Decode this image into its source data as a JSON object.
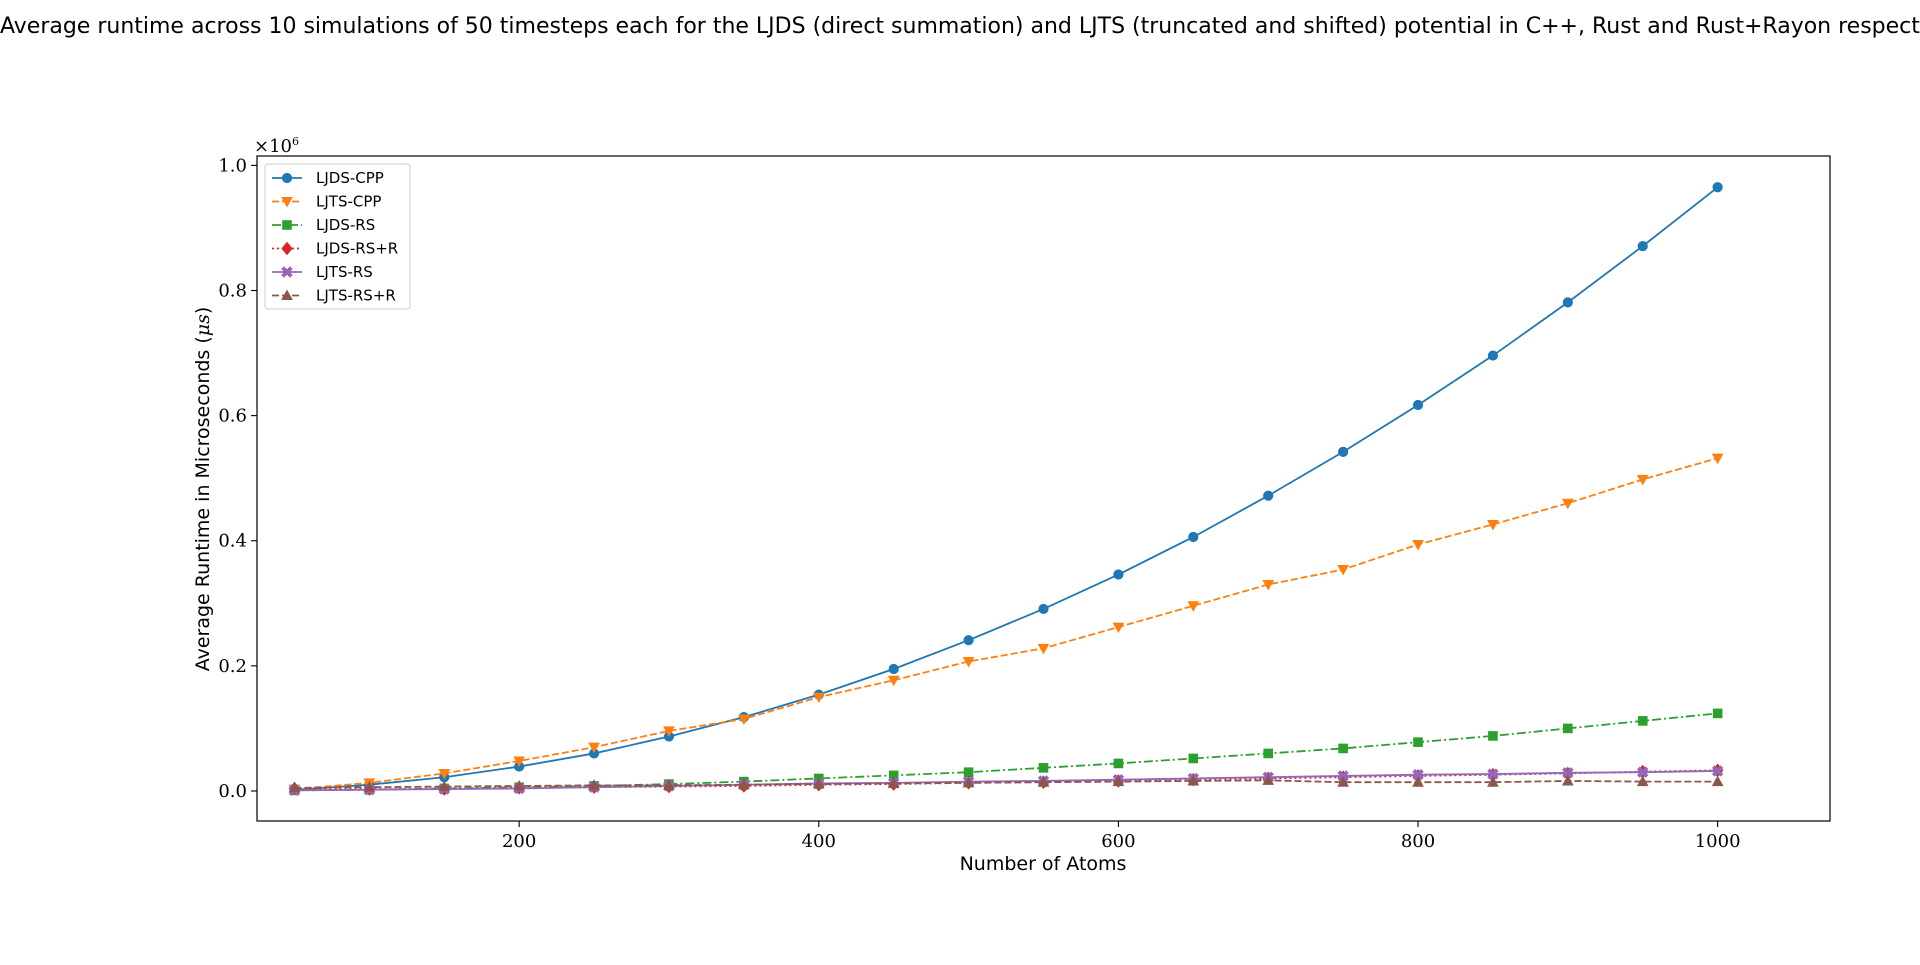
{
  "chart_data": {
    "type": "line",
    "title": "Average runtime across 10 simulations of 50 timesteps each for the LJDS (direct summation) and LJTS (truncated and shifted) potential in C++, Rust and Rust+Rayon respectively",
    "xlabel": "Number of Atoms",
    "ylabel_prefix": "Average Runtime in Microseconds (",
    "ylabel_unit": "μs",
    "ylabel_suffix": ")",
    "y_scale_base": "×10",
    "y_scale_exp": "6",
    "xlim": [
      25,
      1075
    ],
    "ylim": [
      -0.048,
      1.015
    ],
    "xticks": [
      200,
      400,
      600,
      800,
      1000
    ],
    "xtick_labels": [
      "200",
      "400",
      "600",
      "800",
      "1000"
    ],
    "yticks": [
      0.0,
      0.2,
      0.4,
      0.6,
      0.8,
      1.0
    ],
    "ytick_labels": [
      "0.0",
      "0.2",
      "0.4",
      "0.6",
      "0.8",
      "1.0"
    ],
    "legend_position": "upper-left",
    "x": [
      50,
      100,
      150,
      200,
      250,
      300,
      350,
      400,
      450,
      500,
      550,
      600,
      650,
      700,
      750,
      800,
      850,
      900,
      950,
      1000
    ],
    "series": [
      {
        "name": "LJDS-CPP",
        "color": "#1f77b4",
        "marker": "circle",
        "dash": "solid",
        "values": [
          0.002,
          0.01,
          0.022,
          0.039,
          0.06,
          0.087,
          0.118,
          0.154,
          0.195,
          0.241,
          0.291,
          0.346,
          0.406,
          0.472,
          0.542,
          0.617,
          0.696,
          0.781,
          0.871,
          0.965
        ]
      },
      {
        "name": "LJTS-CPP",
        "color": "#ff7f0e",
        "marker": "triangle-down",
        "dash": "dashed",
        "values": [
          0.003,
          0.013,
          0.028,
          0.048,
          0.07,
          0.096,
          0.115,
          0.15,
          0.177,
          0.207,
          0.228,
          0.262,
          0.296,
          0.33,
          0.354,
          0.394,
          0.426,
          0.46,
          0.498,
          0.532
        ]
      },
      {
        "name": "LJDS-RS",
        "color": "#2ca02c",
        "marker": "square",
        "dash": "dashdot",
        "values": [
          0.001,
          0.002,
          0.004,
          0.006,
          0.008,
          0.011,
          0.015,
          0.02,
          0.025,
          0.03,
          0.037,
          0.044,
          0.052,
          0.06,
          0.068,
          0.078,
          0.088,
          0.1,
          0.112,
          0.124
        ]
      },
      {
        "name": "LJDS-RS+R",
        "color": "#d62728",
        "marker": "diamond",
        "dash": "dotted",
        "values": [
          0.004,
          0.003,
          0.003,
          0.005,
          0.006,
          0.007,
          0.008,
          0.01,
          0.011,
          0.013,
          0.014,
          0.016,
          0.018,
          0.02,
          0.022,
          0.024,
          0.026,
          0.028,
          0.031,
          0.033
        ]
      },
      {
        "name": "LJTS-RS",
        "color": "#9467bd",
        "marker": "x-filled",
        "dash": "solid",
        "values": [
          0.001,
          0.002,
          0.003,
          0.004,
          0.006,
          0.008,
          0.01,
          0.012,
          0.013,
          0.015,
          0.016,
          0.018,
          0.02,
          0.022,
          0.024,
          0.026,
          0.027,
          0.029,
          0.03,
          0.032
        ]
      },
      {
        "name": "LJTS-RS+R",
        "color": "#8c564b",
        "marker": "triangle-up",
        "dash": "dashed",
        "values": [
          0.005,
          0.006,
          0.007,
          0.008,
          0.009,
          0.009,
          0.01,
          0.011,
          0.012,
          0.013,
          0.014,
          0.015,
          0.016,
          0.017,
          0.014,
          0.014,
          0.014,
          0.016,
          0.015,
          0.015
        ]
      }
    ]
  }
}
